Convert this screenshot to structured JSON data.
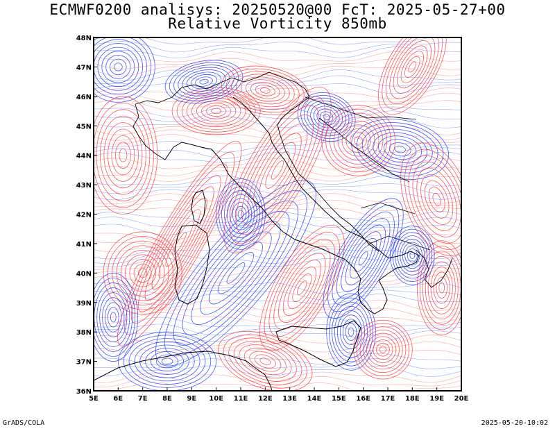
{
  "title": {
    "line1": "ECMWF0200 analisys: 20250520@00 FcT: 2025-05-27+00",
    "line2": "Relative Vorticity 850mb"
  },
  "map": {
    "field": "relative-vorticity-850mb",
    "lon_range": [
      5,
      20
    ],
    "lat_range": [
      36,
      48
    ],
    "lon_ticks": [
      "5E",
      "6E",
      "7E",
      "8E",
      "9E",
      "10E",
      "11E",
      "12E",
      "13E",
      "14E",
      "15E",
      "16E",
      "17E",
      "18E",
      "19E",
      "20E"
    ],
    "lat_ticks": [
      "36N",
      "37N",
      "38N",
      "39N",
      "40N",
      "41N",
      "42N",
      "43N",
      "44N",
      "45N",
      "46N",
      "47N",
      "48N"
    ],
    "colors": {
      "positive": "#ff3b3b",
      "negative": "#1f3cff",
      "coastline": "#000000",
      "frame": "#000000"
    },
    "contour_style": "alternating positive (red) and negative (blue) vorticity isolines over Italy and the central Mediterranean"
  },
  "footer": {
    "left": "GrADS/COLA",
    "right": "2025-05-20-10:02"
  }
}
